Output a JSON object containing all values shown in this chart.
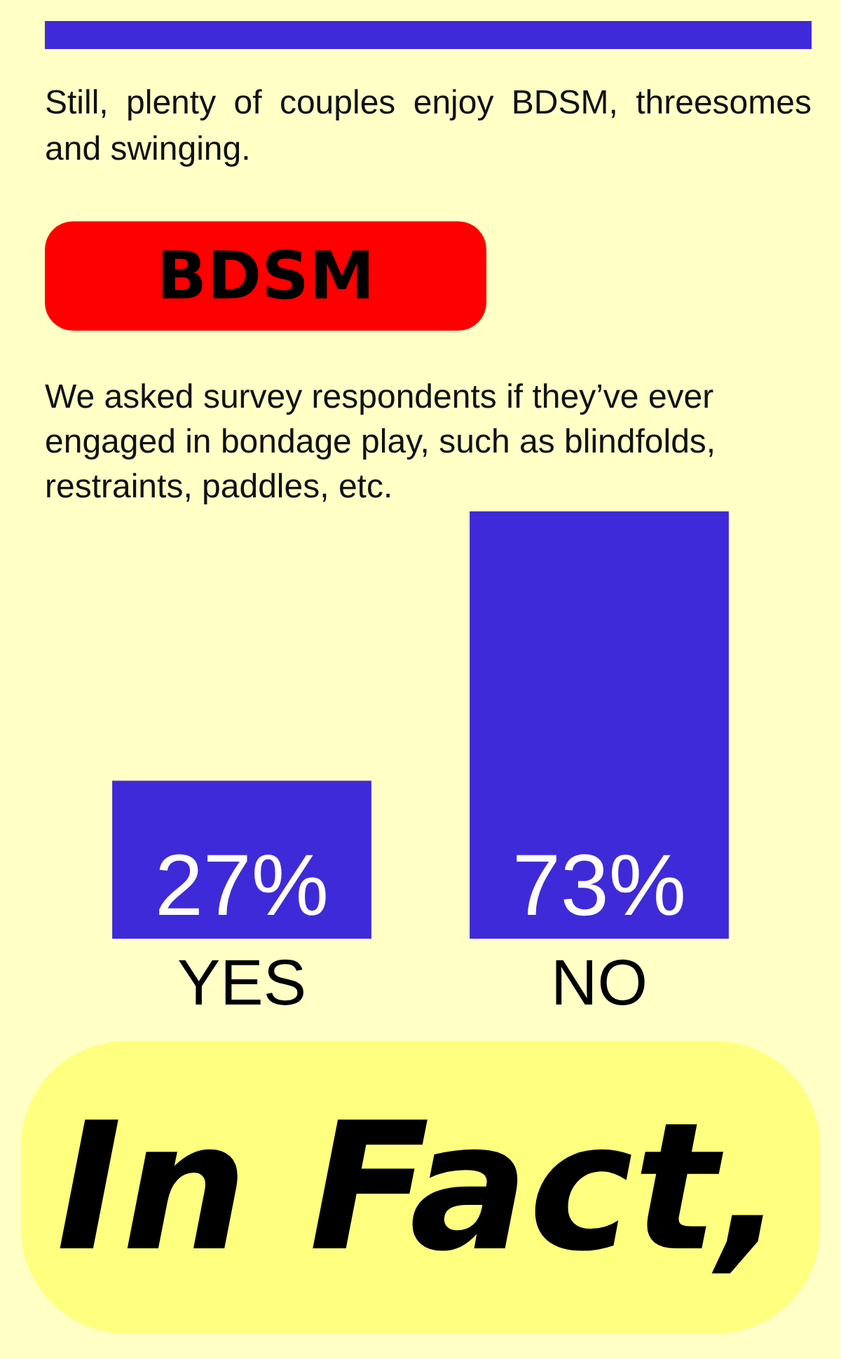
{
  "chart_data": {
    "type": "bar",
    "title": "BDSM",
    "subtitle": "We asked survey respondents if they’ve ever engaged in bondage play, such as blindfolds, restraints, paddles, etc.",
    "annotations": [
      "Still, plenty of couples enjoy BDSM, threesomes and swinging.",
      "In Fact,"
    ],
    "categories": [
      "YES",
      "NO"
    ],
    "values": [
      27,
      73
    ],
    "color": "#3f2ad9",
    "value_labels": [
      "27%",
      "73%"
    ],
    "ylim": [
      0,
      73
    ],
    "tick_labels": "x"
  }
}
